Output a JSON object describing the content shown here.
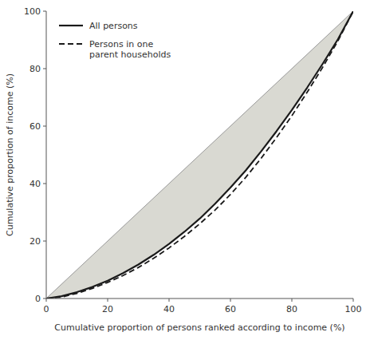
{
  "chart_data": {
    "type": "line",
    "xlabel": "Cumulative proportion of persons ranked according to income (%)",
    "ylabel": "Cumulative proportion of income (%)",
    "x": [
      0,
      5,
      10,
      15,
      20,
      25,
      30,
      35,
      40,
      45,
      50,
      55,
      60,
      65,
      70,
      75,
      80,
      85,
      90,
      95,
      100
    ],
    "series": [
      {
        "name": "All persons",
        "color": "#1a1a1a",
        "line_style": "solid",
        "values": [
          0,
          0.8,
          2.2,
          4.0,
          6.2,
          8.8,
          11.8,
          15.2,
          19.0,
          23.2,
          27.8,
          33.0,
          38.6,
          44.6,
          51.2,
          58.2,
          65.6,
          73.4,
          81.6,
          90.2,
          100
        ]
      },
      {
        "name": "Persons in one\nparent households",
        "color": "#1a1a1a",
        "line_style": "dashed",
        "values": [
          0,
          0.5,
          1.8,
          3.5,
          5.6,
          8.0,
          10.8,
          14.0,
          17.6,
          21.6,
          26.0,
          30.8,
          36.2,
          42.2,
          48.8,
          56.0,
          63.6,
          71.8,
          80.4,
          89.6,
          100
        ]
      }
    ],
    "xlim": [
      0,
      100
    ],
    "ylim": [
      0,
      100
    ],
    "xticks": [
      0,
      20,
      40,
      60,
      80,
      100
    ],
    "yticks": [
      0,
      20,
      40,
      60,
      80,
      100
    ],
    "grid": false,
    "legend": "upper left"
  }
}
